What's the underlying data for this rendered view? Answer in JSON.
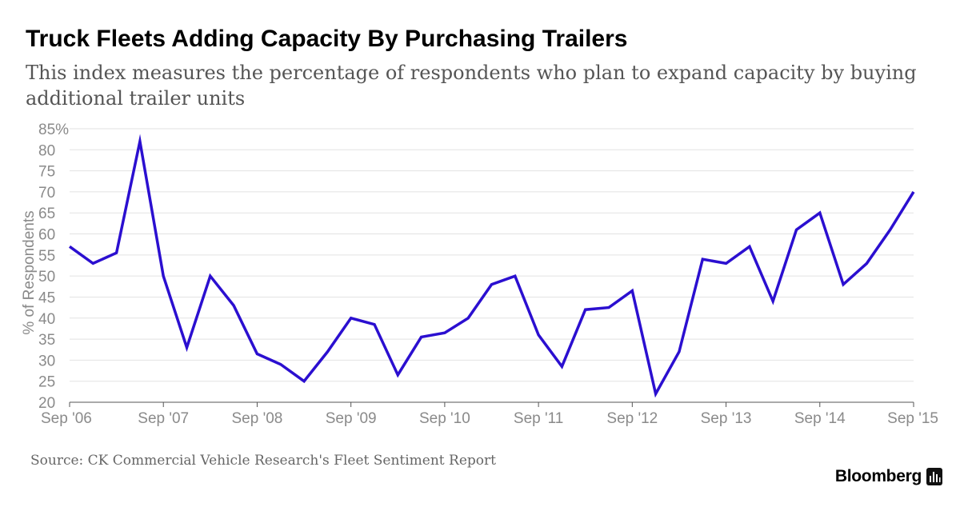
{
  "title": "Truck Fleets Adding Capacity By Purchasing Trailers",
  "subtitle": "This index measures the percentage of respondents who plan to expand capacity by buying additional trailer units",
  "source": "Source: CK Commercial Vehicle Research's Fleet Sentiment Report",
  "brand": "Bloomberg",
  "brand_icon": "bloomberg-chart-icon",
  "colors": {
    "line": "#2b0fd0",
    "grid": "#e2e2e2",
    "tick_text": "#8a8a8a",
    "axis": "#555555"
  },
  "chart_data": {
    "type": "line",
    "title": "Truck Fleets Adding Capacity By Purchasing Trailers",
    "xlabel": "",
    "ylabel": "% of Respondents",
    "ylim": [
      20,
      85
    ],
    "xlim": [
      0,
      36
    ],
    "yticks": [
      20,
      25,
      30,
      35,
      40,
      45,
      50,
      55,
      60,
      65,
      70,
      75,
      80,
      85
    ],
    "ytick_labels": [
      "20",
      "25",
      "30",
      "35",
      "40",
      "45",
      "50",
      "55",
      "60",
      "65",
      "70",
      "75",
      "80",
      "85%"
    ],
    "xticks": [
      0,
      4,
      8,
      12,
      16,
      20,
      24,
      28,
      32,
      36
    ],
    "xtick_labels": [
      "Sep '06",
      "Sep '07",
      "Sep '08",
      "Sep '09",
      "Sep '10",
      "Sep '11",
      "Sep '12",
      "Sep '13",
      "Sep '14",
      "Sep '15"
    ],
    "grid": true,
    "series": [
      {
        "name": "% of Respondents",
        "x": [
          0,
          1,
          2,
          3,
          4,
          5,
          6,
          7,
          8,
          9,
          10,
          11,
          12,
          13,
          14,
          15,
          16,
          17,
          18,
          19,
          20,
          21,
          22,
          23,
          24,
          25,
          26,
          27,
          28,
          29,
          30,
          31,
          32,
          33,
          34,
          35,
          36
        ],
        "values": [
          57,
          53,
          55.5,
          82,
          50,
          33,
          50,
          43,
          31.5,
          29,
          25,
          32,
          40,
          38.5,
          26.5,
          35.5,
          36.5,
          40,
          48,
          50,
          36,
          28.5,
          42,
          42.5,
          46.5,
          22,
          32,
          54,
          53,
          57,
          44,
          61,
          65,
          48,
          53,
          61,
          70
        ]
      }
    ]
  }
}
